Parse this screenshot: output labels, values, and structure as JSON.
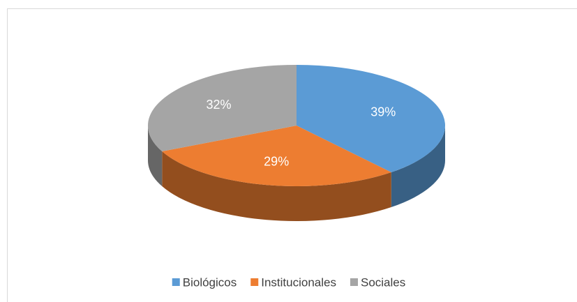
{
  "chart_data": {
    "type": "pie",
    "categories": [
      "Biológicos",
      "Institucionales",
      "Sociales"
    ],
    "values": [
      39,
      29,
      32
    ],
    "value_labels": [
      "39%",
      "29%",
      "32%"
    ],
    "colors": [
      "#5b9bd5",
      "#ed7d31",
      "#a5a5a5"
    ],
    "legend": "bottom"
  }
}
